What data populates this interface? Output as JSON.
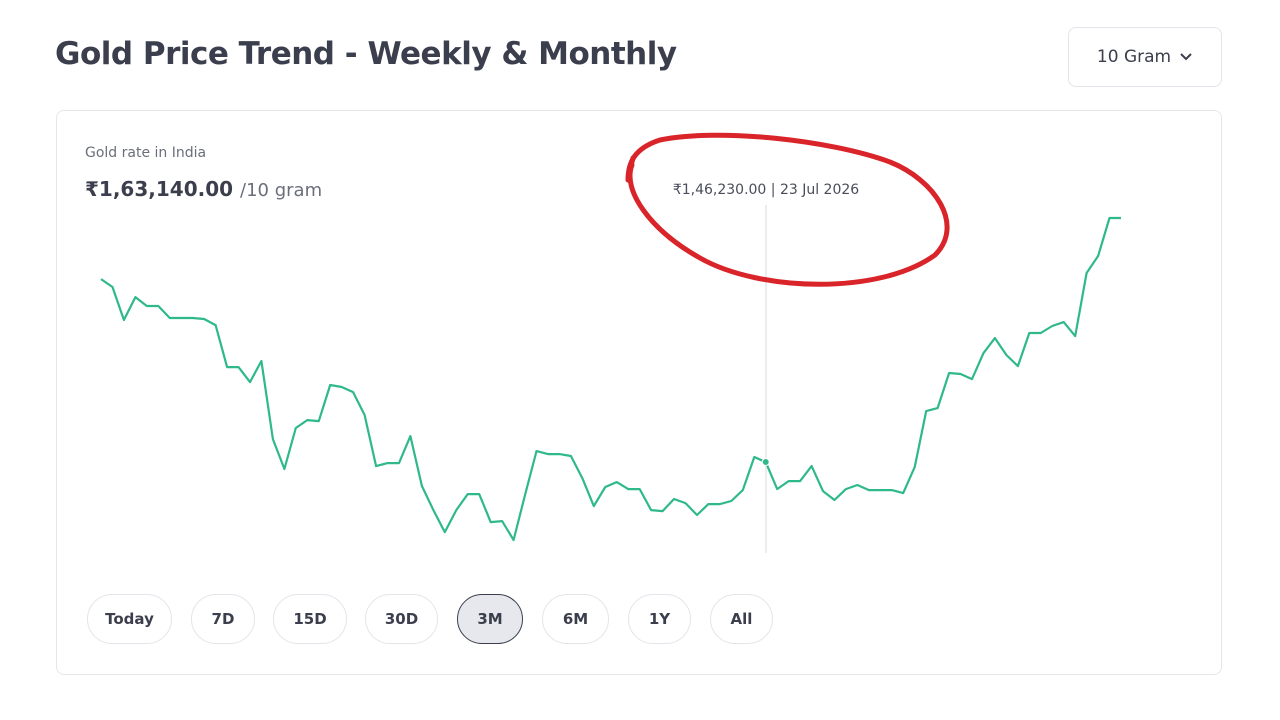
{
  "header": {
    "title": "Gold Price Trend - Weekly & Monthly",
    "unit_selector": "10 Gram"
  },
  "card": {
    "label": "Gold rate in India",
    "price": "₹1,63,140.00",
    "unit": "/10 gram",
    "tooltip": "₹1,46,230.00 | 23 Jul 2026",
    "ranges": [
      "Today",
      "7D",
      "15D",
      "30D",
      "3M",
      "6M",
      "1Y",
      "All"
    ]
  },
  "chart_data": {
    "type": "line",
    "color": "#2fb98a",
    "values": [
      158910,
      158360,
      156070,
      157660,
      157040,
      157040,
      156210,
      156210,
      156210,
      156140,
      155720,
      152810,
      152810,
      151770,
      153230,
      147820,
      145750,
      148590,
      149140,
      149070,
      151570,
      151430,
      151080,
      149490,
      145950,
      146160,
      146160,
      148030,
      144570,
      142900,
      141380,
      142900,
      144010,
      144010,
      142070,
      142140,
      140830,
      143940,
      146990,
      146780,
      146780,
      146650,
      145120,
      143180,
      144500,
      144840,
      144360,
      144360,
      142900,
      142830,
      143670,
      143390,
      142560,
      143320,
      143320,
      143530,
      144290,
      146580,
      146230,
      144360,
      144910,
      144910,
      145950,
      144220,
      143600,
      144360,
      144640,
      144290,
      144290,
      144290,
      144080,
      145880,
      149760,
      149970,
      152400,
      152330,
      151980,
      153780,
      154820,
      153650,
      152880,
      155170,
      155170,
      155660,
      155930,
      154960,
      159330,
      160510,
      163140,
      163140
    ]
  }
}
